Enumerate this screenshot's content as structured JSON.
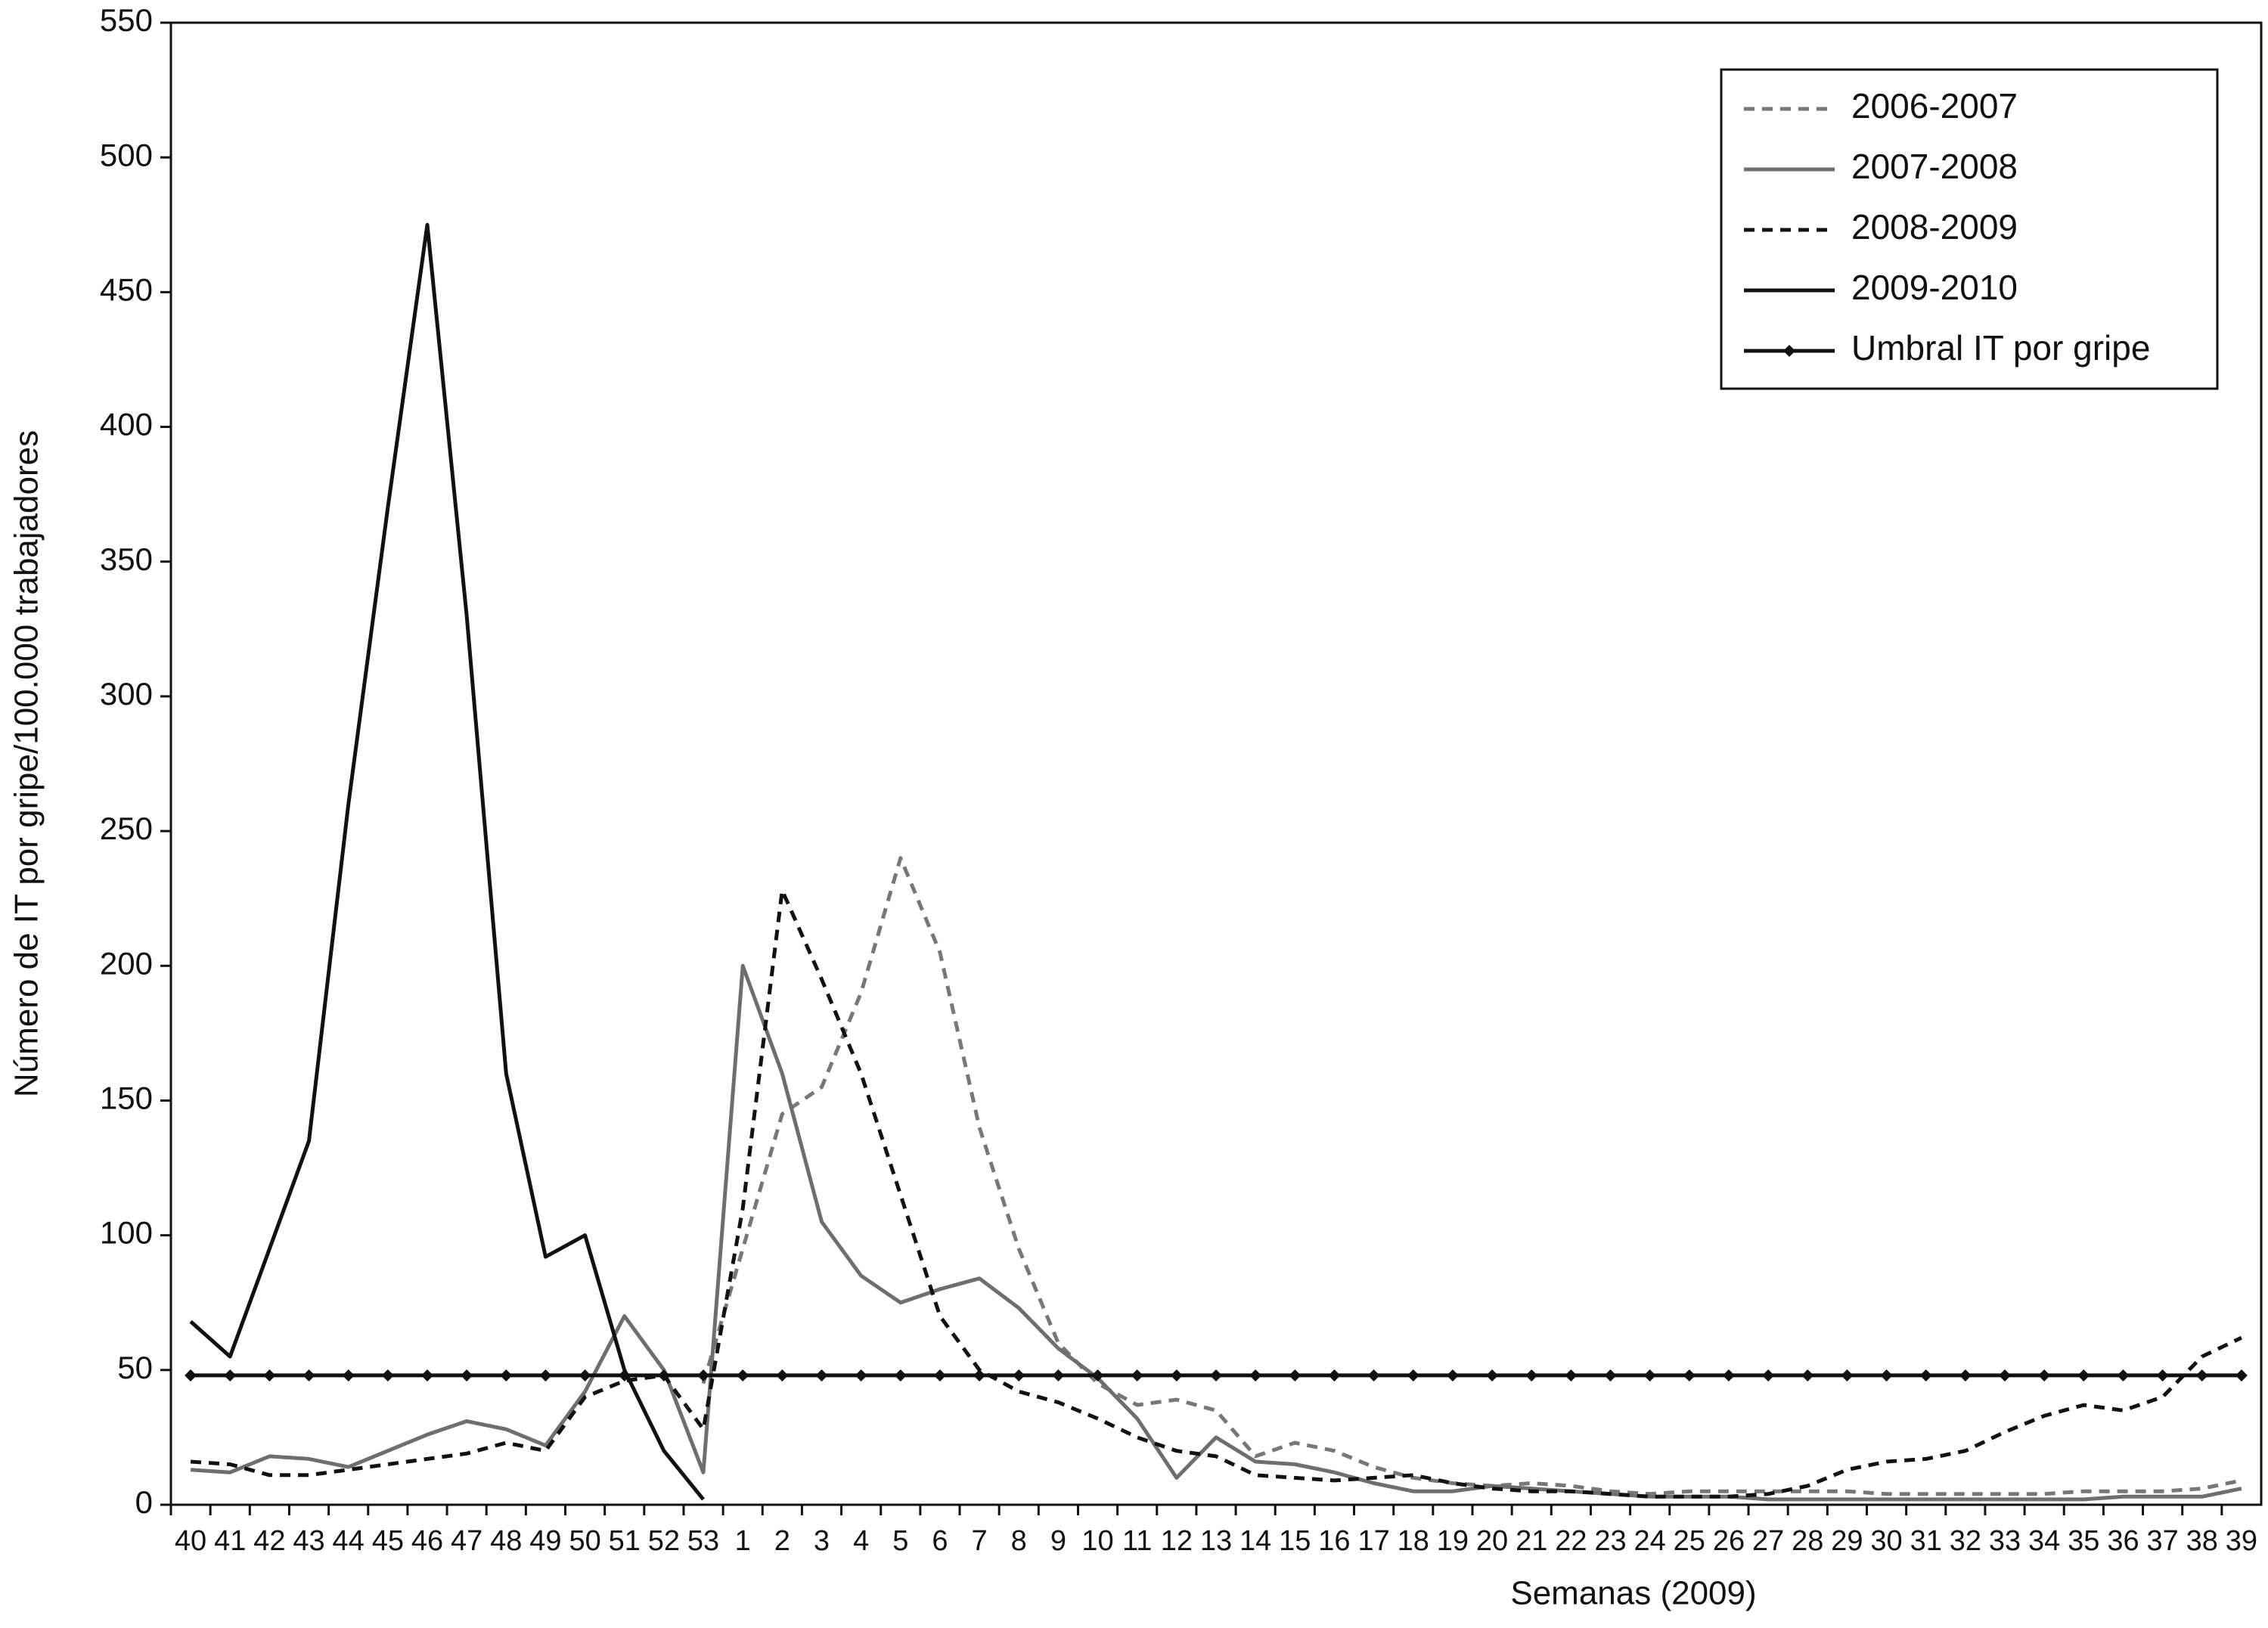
{
  "chart_data": {
    "type": "line",
    "x_label": "Semanas (2009)",
    "y_label": "Número de IT por gripe/100.000 trabajadores",
    "categories": [
      "40",
      "41",
      "42",
      "43",
      "44",
      "45",
      "46",
      "47",
      "48",
      "49",
      "50",
      "51",
      "52",
      "53",
      "1",
      "2",
      "3",
      "4",
      "5",
      "6",
      "7",
      "8",
      "9",
      "10",
      "11",
      "12",
      "13",
      "14",
      "15",
      "16",
      "17",
      "18",
      "19",
      "20",
      "21",
      "22",
      "23",
      "24",
      "25",
      "26",
      "27",
      "28",
      "29",
      "30",
      "31",
      "32",
      "33",
      "34",
      "35",
      "36",
      "37",
      "38",
      "39"
    ],
    "ylim": [
      0,
      550
    ],
    "yticks": [
      0,
      50,
      100,
      150,
      200,
      250,
      300,
      350,
      400,
      450,
      500,
      550
    ],
    "legend": "upper right",
    "series": [
      {
        "name": "2006-2007",
        "color": "#777777",
        "dash": "dashed",
        "values": [
          null,
          null,
          null,
          null,
          null,
          null,
          null,
          null,
          null,
          null,
          null,
          null,
          null,
          45,
          95,
          145,
          155,
          190,
          240,
          205,
          140,
          95,
          60,
          45,
          37,
          39,
          35,
          18,
          23,
          20,
          14,
          10,
          8,
          7,
          8,
          7,
          5,
          4,
          5,
          5,
          5,
          5,
          5,
          4,
          4,
          4,
          4,
          4,
          5,
          5,
          5,
          6,
          9
        ]
      },
      {
        "name": "2007-2008",
        "color": "#6e6e6e",
        "dash": "solid",
        "values": [
          13,
          12,
          18,
          17,
          14,
          20,
          26,
          31,
          28,
          22,
          42,
          70,
          50,
          12,
          200,
          160,
          105,
          85,
          75,
          80,
          84,
          73,
          58,
          47,
          32,
          10,
          25,
          16,
          15,
          12,
          8,
          5,
          5,
          7,
          6,
          5,
          4,
          3,
          3,
          3,
          2,
          2,
          2,
          2,
          2,
          2,
          2,
          2,
          2,
          3,
          3,
          3,
          6
        ]
      },
      {
        "name": "2008-2009",
        "color": "#111111",
        "dash": "dashed",
        "values": [
          16,
          15,
          11,
          11,
          13,
          15,
          17,
          19,
          23,
          20,
          40,
          46,
          48,
          28,
          110,
          228,
          195,
          160,
          115,
          70,
          50,
          42,
          38,
          32,
          25,
          20,
          18,
          11,
          10,
          9,
          10,
          11,
          8,
          6,
          5,
          5,
          4,
          3,
          3,
          3,
          4,
          7,
          13,
          16,
          17,
          20,
          27,
          33,
          37,
          35,
          40,
          55,
          62
        ]
      },
      {
        "name": "2009-2010",
        "color": "#111111",
        "dash": "solid",
        "values": [
          68,
          55,
          95,
          135,
          260,
          370,
          475,
          330,
          160,
          92,
          100,
          50,
          20,
          2,
          null,
          null,
          null,
          null,
          null,
          null,
          null,
          null,
          null,
          null,
          null,
          null,
          null,
          null,
          null,
          null,
          null,
          null,
          null,
          null,
          null,
          null,
          null,
          null,
          null,
          null,
          null,
          null,
          null,
          null,
          null,
          null,
          null,
          null,
          null,
          null,
          null,
          null,
          null
        ]
      },
      {
        "name": "Umbral IT por gripe",
        "color": "#111111",
        "dash": "solid",
        "marker": "diamond",
        "values": [
          48,
          48,
          48,
          48,
          48,
          48,
          48,
          48,
          48,
          48,
          48,
          48,
          48,
          48,
          48,
          48,
          48,
          48,
          48,
          48,
          48,
          48,
          48,
          48,
          48,
          48,
          48,
          48,
          48,
          48,
          48,
          48,
          48,
          48,
          48,
          48,
          48,
          48,
          48,
          48,
          48,
          48,
          48,
          48,
          48,
          48,
          48,
          48,
          48,
          48,
          48,
          48,
          48
        ]
      }
    ]
  }
}
